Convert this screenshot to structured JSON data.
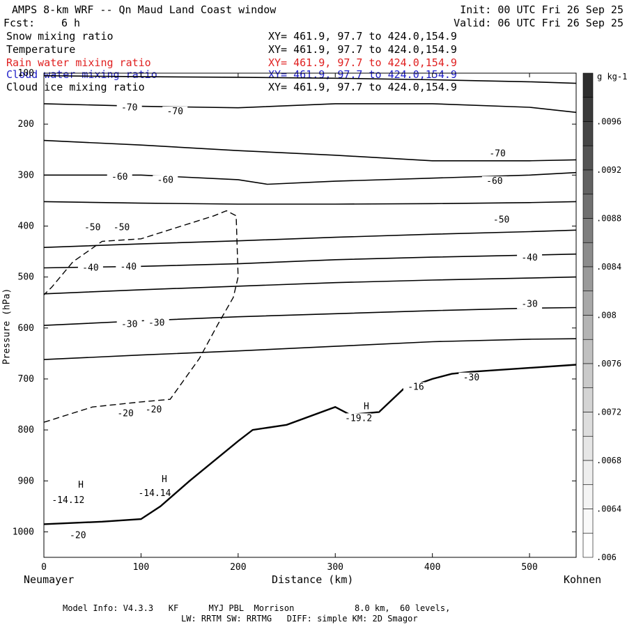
{
  "header": {
    "title": "AMPS 8-km WRF -- Qn Maud Land Coast window",
    "init": "Init: 00 UTC Fri 26 Sep 25",
    "fcst_label": "Fcst:",
    "fcst_value": "6 h",
    "valid": "Valid: 06 UTC Fri 26 Sep 25"
  },
  "fields": [
    {
      "name": "Snow mixing ratio",
      "xy": "XY= 461.9, 97.7 to 424.0,154.9",
      "color": "#000000"
    },
    {
      "name": "Temperature",
      "xy": "XY= 461.9, 97.7 to 424.0,154.9",
      "color": "#000000"
    },
    {
      "name": "Rain water mixing ratio",
      "xy": "XY= 461.9, 97.7 to 424.0,154.9",
      "color": "#e02020"
    },
    {
      "name": "Cloud water mixing ratio",
      "xy": "XY= 461.9, 97.7 to 424.0,154.9",
      "color": "#2020c8"
    },
    {
      "name": "Cloud ice mixing ratio",
      "xy": "XY= 461.9, 97.7 to 424.0,154.9",
      "color": "#000000"
    }
  ],
  "footer": {
    "line1": "Model Info: V4.3.3   KF      MYJ PBL  Morrison            8.0 km,  60 levels,",
    "line2": "LW: RRTM SW: RRTMG   DIFF: simple KM: 2D Smagor"
  },
  "chart_data": {
    "type": "line",
    "title": "AMPS 8-km WRF -- Qn Maud Land Coast window",
    "xlabel": "Distance (km)",
    "ylabel": "Pressure (hPa)",
    "xlim": [
      0,
      548
    ],
    "ylim": [
      1050,
      100
    ],
    "x_ticks": [
      0,
      100,
      200,
      300,
      400,
      500
    ],
    "y_ticks": [
      200,
      300,
      400,
      500,
      600,
      700,
      800,
      900,
      1000
    ],
    "y_tick_labels": [
      "200",
      "300",
      "400",
      "500",
      "600",
      "700",
      "800",
      "900",
      "1000"
    ],
    "y_tick_top_label": "100",
    "endpoints": {
      "left": "Neumayer",
      "right": "Kohnen"
    },
    "colorbar": {
      "unit": "g kg-1",
      "labels": [
        ".0096",
        ".0092",
        ".0088",
        ".0084",
        ".008",
        ".0076",
        ".0072",
        ".0068",
        ".0064",
        ".006"
      ],
      "shades": [
        "#2e2e2e",
        "#3a3a3a",
        "#464646",
        "#545454",
        "#626262",
        "#707070",
        "#7e7e7e",
        "#8c8c8c",
        "#9a9a9a",
        "#a8a8a8",
        "#b4b4b4",
        "#c0c0c0",
        "#cacaca",
        "#d4d4d4",
        "#dddddd",
        "#e6e6e6",
        "#eeeeee",
        "#f4f4f4",
        "#f9f9f9",
        "#ffffff"
      ]
    },
    "isotherms": [
      {
        "points": [
          [
            0,
            105
          ],
          [
            100,
            107
          ],
          [
            200,
            108
          ],
          [
            300,
            110
          ],
          [
            400,
            113
          ],
          [
            500,
            117
          ],
          [
            548,
            120
          ]
        ]
      },
      {
        "points": [
          [
            0,
            160
          ],
          [
            100,
            165
          ],
          [
            200,
            168
          ],
          [
            300,
            160
          ],
          [
            400,
            160
          ],
          [
            500,
            167
          ],
          [
            548,
            177
          ]
        ]
      },
      {
        "points": [
          [
            0,
            232
          ],
          [
            100,
            241
          ],
          [
            200,
            252
          ],
          [
            300,
            261
          ],
          [
            400,
            272
          ],
          [
            500,
            272
          ],
          [
            548,
            270
          ]
        ]
      },
      {
        "points": [
          [
            0,
            300
          ],
          [
            100,
            300
          ],
          [
            200,
            309
          ],
          [
            230,
            318
          ],
          [
            300,
            312
          ],
          [
            400,
            306
          ],
          [
            500,
            300
          ],
          [
            548,
            295
          ]
        ]
      },
      {
        "points": [
          [
            0,
            352
          ],
          [
            100,
            355
          ],
          [
            200,
            357
          ],
          [
            300,
            357
          ],
          [
            400,
            356
          ],
          [
            500,
            354
          ],
          [
            548,
            352
          ]
        ]
      },
      {
        "points": [
          [
            0,
            442
          ],
          [
            100,
            435
          ],
          [
            200,
            429
          ],
          [
            300,
            422
          ],
          [
            400,
            416
          ],
          [
            500,
            411
          ],
          [
            548,
            408
          ]
        ]
      },
      {
        "points": [
          [
            0,
            482
          ],
          [
            100,
            479
          ],
          [
            200,
            474
          ],
          [
            300,
            466
          ],
          [
            400,
            461
          ],
          [
            500,
            457
          ],
          [
            548,
            455
          ]
        ]
      },
      {
        "points": [
          [
            0,
            533
          ],
          [
            100,
            525
          ],
          [
            200,
            518
          ],
          [
            300,
            511
          ],
          [
            400,
            506
          ],
          [
            500,
            502
          ],
          [
            548,
            500
          ]
        ]
      },
      {
        "points": [
          [
            0,
            595
          ],
          [
            100,
            586
          ],
          [
            200,
            578
          ],
          [
            300,
            572
          ],
          [
            400,
            566
          ],
          [
            500,
            561
          ],
          [
            548,
            560
          ]
        ]
      },
      {
        "points": [
          [
            0,
            662
          ],
          [
            100,
            653
          ],
          [
            200,
            645
          ],
          [
            300,
            636
          ],
          [
            400,
            627
          ],
          [
            500,
            622
          ],
          [
            548,
            621
          ]
        ]
      }
    ],
    "contour_labels": [
      {
        "text": "-70",
        "x": 88,
        "p": 168
      },
      {
        "text": "-70",
        "x": 135,
        "p": 175
      },
      {
        "text": "-70",
        "x": 467,
        "p": 258
      },
      {
        "text": "-60",
        "x": 78,
        "p": 304
      },
      {
        "text": "-60",
        "x": 125,
        "p": 310
      },
      {
        "text": "-60",
        "x": 464,
        "p": 312
      },
      {
        "text": "-50",
        "x": 50,
        "p": 403
      },
      {
        "text": "-50",
        "x": 80,
        "p": 403
      },
      {
        "text": "-50",
        "x": 471,
        "p": 388
      },
      {
        "text": "-40",
        "x": 48,
        "p": 482
      },
      {
        "text": "-40",
        "x": 87,
        "p": 480
      },
      {
        "text": "-40",
        "x": 500,
        "p": 462
      },
      {
        "text": "-30",
        "x": 88,
        "p": 593
      },
      {
        "text": "-30",
        "x": 116,
        "p": 590
      },
      {
        "text": "-30",
        "x": 500,
        "p": 553
      },
      {
        "text": "-30",
        "x": 440,
        "p": 697
      },
      {
        "text": "-20",
        "x": 84,
        "p": 768
      },
      {
        "text": "-20",
        "x": 113,
        "p": 760
      },
      {
        "text": "-20",
        "x": 35,
        "p": 1007
      },
      {
        "text": "-16",
        "x": 383,
        "p": 716
      },
      {
        "text": "H",
        "x": 38,
        "p": 908
      },
      {
        "text": "-14.12",
        "x": 25,
        "p": 938
      },
      {
        "text": "H",
        "x": 124,
        "p": 897
      },
      {
        "text": "-14.14",
        "x": 114,
        "p": 924
      },
      {
        "text": "H",
        "x": 332,
        "p": 754
      },
      {
        "text": "-19.2",
        "x": 324,
        "p": 777
      }
    ],
    "terrain": {
      "points": [
        [
          0,
          985
        ],
        [
          60,
          980
        ],
        [
          100,
          975
        ],
        [
          120,
          950
        ],
        [
          150,
          900
        ],
        [
          200,
          822
        ],
        [
          215,
          800
        ],
        [
          250,
          790
        ],
        [
          300,
          755
        ],
        [
          315,
          770
        ],
        [
          345,
          765
        ],
        [
          370,
          720
        ],
        [
          400,
          700
        ],
        [
          420,
          690
        ],
        [
          440,
          686
        ],
        [
          548,
          672
        ]
      ]
    },
    "cloud_outline": {
      "points": [
        [
          0,
          785
        ],
        [
          50,
          755
        ],
        [
          100,
          745
        ],
        [
          130,
          740
        ],
        [
          160,
          660
        ],
        [
          180,
          590
        ],
        [
          195,
          540
        ],
        [
          200,
          500
        ],
        [
          198,
          380
        ],
        [
          188,
          370
        ],
        [
          175,
          380
        ],
        [
          150,
          395
        ],
        [
          100,
          425
        ],
        [
          60,
          430
        ],
        [
          30,
          470
        ],
        [
          8,
          520
        ],
        [
          0,
          535
        ]
      ]
    }
  }
}
